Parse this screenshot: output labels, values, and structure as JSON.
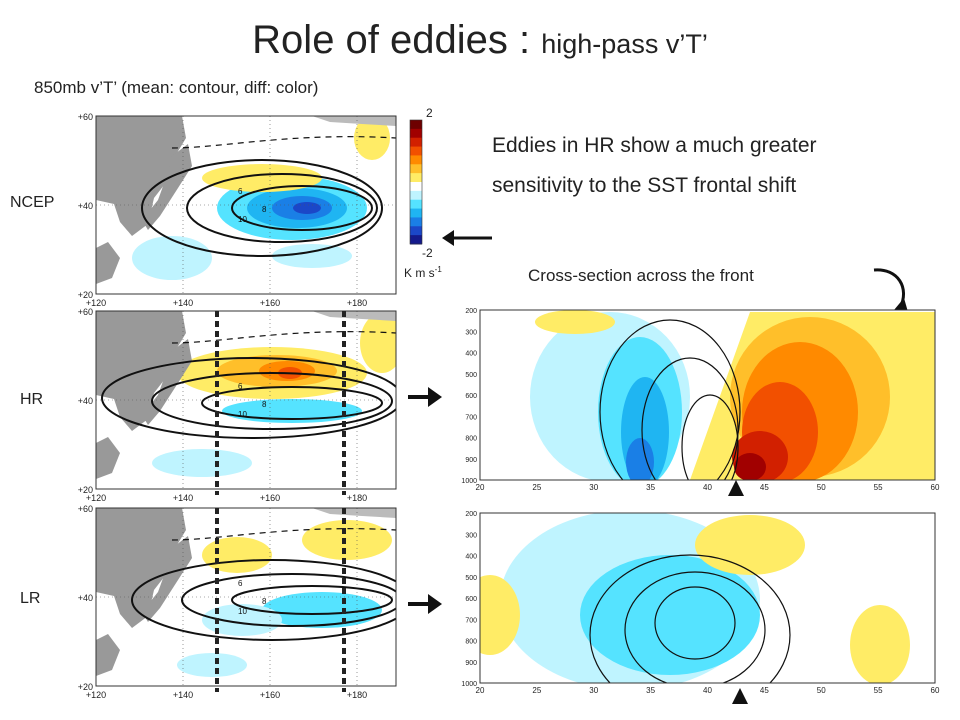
{
  "title": {
    "main": "Role of eddies",
    "sep": " : ",
    "sub": "high-pass v’T’"
  },
  "subtitle": "850mb v’T’ (mean: contour, diff: color)",
  "note": [
    "Eddies in HR show a much greater",
    "sensitivity to the SST frontal shift"
  ],
  "xsection_title": "Cross-section across the front",
  "rows": [
    {
      "label": "NCEP",
      "has_xsection": false
    },
    {
      "label": "HR",
      "has_xsection": true
    },
    {
      "label": "LR",
      "has_xsection": true
    }
  ],
  "colorbar": {
    "max": "2",
    "min": "-2",
    "unit": "K m s",
    "unit_exp": "-1",
    "colors": [
      "#6e0000",
      "#a10000",
      "#d22000",
      "#f25000",
      "#ff8a00",
      "#ffbf2a",
      "#ffec66",
      "#ffffff",
      "#bff4ff",
      "#55e3ff",
      "#1fb5f2",
      "#1a7fe6",
      "#1b47c8",
      "#141a8c"
    ]
  },
  "map_axes": {
    "lon_ticks": [
      "+120",
      "+140",
      "+160",
      "+180"
    ],
    "lat_ticks": [
      "+60",
      "+40",
      "+20"
    ],
    "contour_labels": [
      "6",
      "8",
      "10"
    ]
  },
  "xsection_axes": {
    "x_ticks": [
      "20",
      "25",
      "30",
      "35",
      "40",
      "45",
      "50",
      "55",
      "60"
    ],
    "y_ticks": [
      "200",
      "300",
      "400",
      "500",
      "600",
      "700",
      "800",
      "900",
      "1000"
    ]
  }
}
